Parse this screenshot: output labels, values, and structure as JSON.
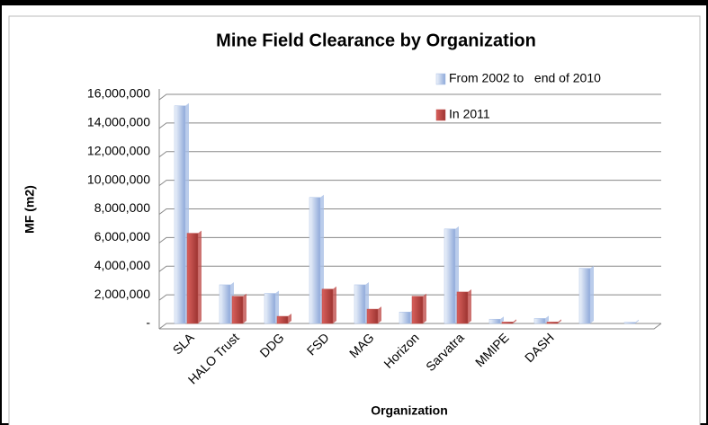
{
  "chart_data": {
    "type": "bar",
    "title": "Mine Field Clearance by Organization",
    "x_label": "Organization",
    "y_label": "MF (m2)",
    "categories": [
      "SLA",
      "HALO Trust",
      "DDG",
      "FSD",
      "MAG",
      "Horizon",
      "Sarvatra",
      "MMIPE",
      "DASH",
      null,
      null
    ],
    "series": [
      {
        "name": "From 2002 to   end of 2010",
        "color": "#a9bfe6",
        "values": [
          15200000,
          2700000,
          2100000,
          8800000,
          2700000,
          800000,
          6600000,
          300000,
          350000,
          3850000,
          80000
        ]
      },
      {
        "name": "In 2011",
        "color": "#c0504d",
        "values": [
          6300000,
          1900000,
          500000,
          2400000,
          1000000,
          1900000,
          2200000,
          100000,
          100000,
          0,
          0
        ]
      }
    ],
    "ylim": [
      0,
      16000000
    ],
    "yticks": [
      {
        "value": 0,
        "label": "-"
      },
      {
        "value": 2000000,
        "label": "2,000,000"
      },
      {
        "value": 4000000,
        "label": "4,000,000"
      },
      {
        "value": 6000000,
        "label": "6,000,000"
      },
      {
        "value": 8000000,
        "label": "8,000,000"
      },
      {
        "value": 10000000,
        "label": "10,000,000"
      },
      {
        "value": 12000000,
        "label": "12,000,000"
      },
      {
        "value": 14000000,
        "label": "14,000,000"
      },
      {
        "value": 16000000,
        "label": "16,000,000"
      }
    ],
    "grid": true,
    "legend": "top-right"
  }
}
